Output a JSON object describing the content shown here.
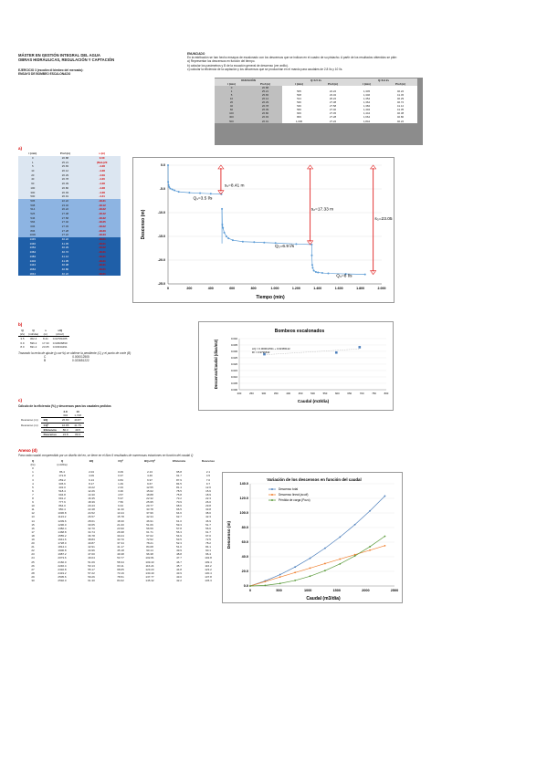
{
  "header": {
    "line1": "MÁSTER EN GESTIÓN INTEGRAL DEL AGUA",
    "line2": "OBRAS HIDRÁULICAS, REGULACIÓN Y CAPTACIÓN",
    "line3": "EJERCICIO 3 (escalón di bimbeo del mercado):",
    "line4": "ENSAYO DE BOMBEO ESCALONADO"
  },
  "statement": {
    "title": "ENUNCIADO",
    "l1": "En la estribación se han hecho ensayos de escalonado con los descensos que se indican en el cuadro de su pistacho. A partir de los resultados obtenidos se pide:",
    "l2": "a) Representar los descensos en función del tiempo.",
    "l3": "b) calcular los parámetros y  B de la ecuación general de descenso (ver anillo).",
    "l4": "c) calcular la eficiencia de la captación y los descensos que se producirían en el mando para caudales de 2.8 l/s y 10 l/s."
  },
  "data_table": {
    "head1": [
      "DURACIÓN",
      "Q=3.5 l/s",
      "Q=6.9 l/s"
    ],
    "head2": [
      "t (min)",
      "Prof (m)",
      "t (min)",
      "Prof (m)",
      "t (min)",
      "Prof (m)"
    ],
    "rows": [
      [
        "0",
        "20.88",
        "",
        "",
        "",
        ""
      ],
      [
        "1",
        "25.21",
        "505",
        "22.22",
        "1,345",
        "40.22"
      ],
      [
        "5",
        "25.65",
        "508",
        "23.32",
        "1,346",
        "41.45"
      ],
      [
        "10",
        "26.12",
        "514",
        "26.22",
        "1,354",
        "40.29"
      ],
      [
        "20",
        "26.29",
        "526",
        "27.38",
        "1,364",
        "40.72"
      ],
      [
        "40",
        "26.78",
        "546",
        "27.58",
        "1,384",
        "41.12"
      ],
      [
        "60",
        "26.39",
        "566",
        "27.40",
        "1,404",
        "41.35"
      ],
      [
        "100",
        "26.80",
        "606",
        "27.45",
        "1,444",
        "40.38"
      ],
      [
        "300",
        "26.93",
        "806",
        "27.28",
        "1,664",
        "40.80"
      ],
      [
        "500",
        "26.91",
        "1,006",
        "27.22",
        "1,844",
        "40.22"
      ]
    ]
  },
  "section_a": {
    "label": "a)",
    "cols": [
      "t (min)",
      "Prof (m)",
      "s (m)"
    ],
    "rows": [
      [
        "0",
        "20.88",
        "0.00"
      ],
      [
        "1",
        "25.21",
        "(Reb.)20"
      ],
      [
        "5",
        "25.65",
        "-4.28"
      ],
      [
        "10",
        "26.12",
        "-4.28"
      ],
      [
        "20",
        "26.29",
        "-4.09"
      ],
      [
        "40",
        "26.78",
        "-4.20"
      ],
      [
        "60",
        "26.39",
        "-4.28"
      ],
      [
        "100",
        "26.80",
        "-4.28"
      ],
      [
        "300",
        "26.93",
        "-4.28"
      ],
      [
        "500",
        "26.91",
        "-4.41"
      ],
      [
        "505",
        "22.22",
        "-18.31"
      ],
      [
        "508",
        "23.32",
        "-18.12"
      ],
      [
        "514",
        "26.22",
        "-18.22"
      ],
      [
        "526",
        "27.38",
        "-18.42"
      ],
      [
        "546",
        "27.58",
        "-18.32"
      ],
      [
        "566",
        "27.40",
        "-18.25"
      ],
      [
        "606",
        "27.45",
        "-18.22"
      ],
      [
        "806",
        "27.28",
        "-18.20"
      ],
      [
        "1006",
        "27.22",
        "-18.33"
      ],
      [
        "1345",
        "40.22",
        "-18.21"
      ],
      [
        "1346",
        "41.45",
        "-18.21"
      ],
      [
        "1354",
        "40.29",
        "-18.22"
      ],
      [
        "1364",
        "40.72",
        "-18.31"
      ],
      [
        "1384",
        "41.12",
        "-18.21"
      ],
      [
        "1404",
        "41.35",
        "-18.21"
      ],
      [
        "1444",
        "40.38",
        "-18.31"
      ],
      [
        "1664",
        "40.80",
        "-18.21"
      ],
      [
        "1844",
        "40.22",
        "-18.21"
      ]
    ]
  },
  "chart_a": {
    "type": "line",
    "ylabel": "Descenso (m)",
    "xlabel": "Tiempo (min)",
    "xticks": [
      "0",
      "200",
      "400",
      "600",
      "800",
      "1.000",
      "1.200",
      "1.400",
      "1.600",
      "1.800",
      "2.000"
    ],
    "yticks": [
      "0.0",
      "-5.0",
      "-10.0",
      "-15.0",
      "-20.0",
      "-25.0"
    ],
    "xlim": [
      0,
      2000
    ],
    "ylim": [
      -25,
      0
    ],
    "annotations": [
      "Q₁=3.5 l/s",
      "Q₂=6.9 l/s",
      "Q₃=8 l/s",
      "s₁=8.41 m",
      "s₂=17.33 m",
      "s₃=23.05 m"
    ],
    "series": [
      {
        "x": [
          0,
          1,
          5,
          10,
          20,
          40,
          60,
          100,
          200,
          300,
          400,
          500
        ],
        "y": [
          0,
          -3.5,
          -4.2,
          -4.6,
          -4.9,
          -5.1,
          -5.3,
          -5.6,
          -5.8,
          -5.9,
          -6.0,
          -6.1
        ]
      },
      {
        "x": [
          505,
          508,
          514,
          526,
          546,
          566,
          606,
          700,
          806,
          900,
          1006,
          1200,
          1345
        ],
        "y": [
          -9.2,
          -12.5,
          -13.2,
          -14.2,
          -15.0,
          -15.4,
          -15.8,
          -16.1,
          -16.2,
          -16.3,
          -16.4,
          -16.6,
          -16.7
        ]
      },
      {
        "x": [
          1346,
          1350,
          1354,
          1364,
          1384,
          1404,
          1444,
          1500,
          1664,
          1844
        ],
        "y": [
          -19.0,
          -21.0,
          -21.6,
          -22.2,
          -22.5,
          -22.6,
          -22.7,
          -22.8,
          -22.9,
          -23.0
        ]
      }
    ]
  },
  "section_b": {
    "label": "b)",
    "cols": [
      "Q",
      "Q",
      "s",
      "s/Q"
    ],
    "units": [
      "(l/s)",
      "(m3/día)",
      "(m)",
      "(d/m2)"
    ],
    "rows": [
      [
        "3.5",
        "302.4",
        "8.41",
        "0.02781085"
      ],
      [
        "6.9",
        "596.2",
        "17.33",
        "0.02906890"
      ],
      [
        "8.0",
        "691.2",
        "23.05",
        "0.03334491"
      ]
    ],
    "note": "Trazando la recta de ajuste (y=ax+b) se obtiene la pendiente (C) y el punto de corte (B)",
    "c_label": "C",
    "c_value": "0.000012505",
    "b_label": "B",
    "b_value": "0.023651222"
  },
  "chart_b": {
    "type": "scatter",
    "title": "Bombeos escalonados",
    "ylabel": "Descenso/Caudal (días/m2)",
    "xlabel": "Caudal (m3/día)",
    "xticks": [
      "200",
      "250",
      "300",
      "350",
      "400",
      "450",
      "500",
      "550",
      "600",
      "650",
      "700",
      "750",
      "800"
    ],
    "yticks": [
      "0.000",
      "0.005",
      "0.010",
      "0.015",
      "0.020",
      "0.025",
      "0.030",
      "0.035",
      "0.040"
    ],
    "xlim": [
      200,
      800
    ],
    "ylim": [
      0,
      0.04
    ],
    "legend": [
      "s/Q = 0.00001250x + 0.02365122",
      "R² = 0.9796543"
    ],
    "series": [
      {
        "x": [
          302.4,
          596.2,
          691.2
        ],
        "y": [
          0.0278,
          0.0291,
          0.0333
        ]
      }
    ]
  },
  "section_c": {
    "label": "c)",
    "title": "Cálculo de la eficiencia (%) y descensos para los caudales pedidos",
    "col_heads": [
      "",
      "",
      "2.8",
      "10"
    ],
    "col_heads2": [
      "",
      "",
      "302",
      "1,728"
    ],
    "rows": [
      [
        "",
        "BQ",
        "26.80",
        "40.87"
      ],
      [
        "",
        "CQ²",
        "16.85",
        "41.75"
      ],
      [
        "",
        "Eficiencia",
        "80.3",
        "49.5"
      ],
      [
        "",
        "Descenso",
        "24.8",
        "80.3"
      ]
    ],
    "side": [
      "Descenso (m)",
      "Descenso (m)"
    ]
  },
  "section_d": {
    "label": "Anexo (d)",
    "intro": "Para cada caudal comprendido por un diseño del en, se tiene en el libro 9 resultados de numerosas estaciones en función del caudal Q",
    "cols": [
      "Q",
      "Q",
      "BQ",
      "CQ²",
      "BQ+CQ²",
      "Eficiencia",
      "Descenso"
    ],
    "units": [
      "(l/s)",
      "(m3/día)",
      "",
      "",
      "",
      "",
      ""
    ],
    "rows": [
      [
        "0",
        "",
        "",
        "",
        "",
        "",
        ""
      ],
      [
        "1",
        "86.4",
        "2.04",
        "0.09",
        "2.13",
        "95.8",
        "2.1"
      ],
      [
        "2",
        "172.8",
        "4.09",
        "0.37",
        "4.46",
        "91.7",
        "4.5"
      ],
      [
        "3",
        "259.2",
        "6.13",
        "0.84",
        "6.97",
        "87.9",
        "7.0"
      ],
      [
        "4",
        "345.6",
        "8.17",
        "1.49",
        "9.67",
        "84.5",
        "9.7"
      ],
      [
        "5",
        "432.0",
        "10.22",
        "2.33",
        "12.55",
        "81.4",
        "12.6"
      ],
      [
        "6",
        "518.4",
        "12.26",
        "3.36",
        "15.62",
        "78.5",
        "15.6"
      ],
      [
        "7",
        "604.8",
        "14.30",
        "4.57",
        "18.88",
        "75.8",
        "18.9"
      ],
      [
        "8",
        "691.2",
        "16.35",
        "5.97",
        "22.32",
        "73.2",
        "22.3"
      ],
      [
        "9",
        "777.6",
        "18.39",
        "7.56",
        "25.95",
        "70.9",
        "26.0"
      ],
      [
        "10",
        "864.0",
        "20.43",
        "9.34",
        "29.77",
        "68.6",
        "29.8"
      ],
      [
        "11",
        "950.4",
        "22.48",
        "11.30",
        "33.78",
        "66.5",
        "33.8"
      ],
      [
        "12",
        "1036.8",
        "24.52",
        "13.44",
        "37.96",
        "64.6",
        "38.0"
      ],
      [
        "13",
        "1123.2",
        "26.57",
        "15.78",
        "42.34",
        "62.7",
        "42.3"
      ],
      [
        "14",
        "1209.6",
        "28.61",
        "18.30",
        "46.91",
        "61.0",
        "46.9"
      ],
      [
        "15",
        "1296.0",
        "30.65",
        "21.00",
        "51.66",
        "59.3",
        "51.7"
      ],
      [
        "16",
        "1382.4",
        "32.70",
        "23.90",
        "56.59",
        "57.8",
        "56.6"
      ],
      [
        "17",
        "1468.8",
        "34.74",
        "26.98",
        "61.71",
        "56.3",
        "61.7"
      ],
      [
        "18",
        "1555.2",
        "36.78",
        "30.24",
        "67.02",
        "54.9",
        "67.0"
      ],
      [
        "19",
        "1641.6",
        "38.83",
        "33.70",
        "72.52",
        "53.5",
        "72.5"
      ],
      [
        "20",
        "1728.0",
        "40.87",
        "37.34",
        "78.21",
        "52.3",
        "78.2"
      ],
      [
        "21",
        "1814.4",
        "42.91",
        "41.17",
        "84.08",
        "51.0",
        "84.1"
      ],
      [
        "22",
        "1900.8",
        "44.96",
        "45.18",
        "90.14",
        "49.9",
        "90.1"
      ],
      [
        "23",
        "1987.2",
        "47.00",
        "49.38",
        "96.38",
        "48.8",
        "96.4"
      ],
      [
        "24",
        "2073.6",
        "49.04",
        "53.77",
        "102.81",
        "47.7",
        "102.8"
      ],
      [
        "25",
        "2160.0",
        "51.09",
        "58.34",
        "109.43",
        "46.7",
        "109.4"
      ],
      [
        "26",
        "2246.4",
        "53.13",
        "63.11",
        "116.24",
        "45.7",
        "116.2"
      ],
      [
        "27",
        "2332.8",
        "55.17",
        "68.05",
        "123.23",
        "44.8",
        "123.2"
      ],
      [
        "28",
        "2419.2",
        "57.22",
        "73.19",
        "130.40",
        "43.9",
        "130.4"
      ],
      [
        "29",
        "2505.6",
        "59.26",
        "78.51",
        "137.77",
        "43.0",
        "137.8"
      ],
      [
        "30",
        "2592.0",
        "61.30",
        "84.02",
        "145.32",
        "42.2",
        "145.3"
      ]
    ]
  },
  "chart_d": {
    "type": "line",
    "title": "Variación de los descensos en función del caudal",
    "ylabel": "Descenso (m)",
    "xlabel": "Caudal (m3/día)",
    "xticks": [
      "0",
      "500",
      "1000",
      "1500",
      "2000",
      "2500"
    ],
    "yticks": [
      "0.0",
      "20.0",
      "40.0",
      "60.0",
      "80.0",
      "100.0",
      "120.0",
      "140.0"
    ],
    "xlim": [
      0,
      2500
    ],
    "ylim": [
      0,
      140
    ],
    "series": [
      {
        "name": "Descenso total",
        "color": "#4f81bd",
        "x": [
          0,
          259,
          518,
          778,
          1037,
          1296,
          1555,
          1814,
          2074,
          2333
        ],
        "y": [
          0,
          7.0,
          15.6,
          26.0,
          38.0,
          51.7,
          67.0,
          84.1,
          102.8,
          123.2
        ]
      },
      {
        "name": "Descenso lineal (acuíf)",
        "color": "#f08030",
        "x": [
          0,
          259,
          518,
          778,
          1037,
          1296,
          1555,
          1814,
          2074,
          2333
        ],
        "y": [
          0,
          6.1,
          12.3,
          18.4,
          24.5,
          30.7,
          36.8,
          42.9,
          49.0,
          55.2
        ]
      },
      {
        "name": "Pérdida de carga (Pozo)",
        "color": "#5a9a3a",
        "x": [
          0,
          259,
          518,
          778,
          1037,
          1296,
          1555,
          1814,
          2074,
          2333
        ],
        "y": [
          0,
          0.8,
          3.4,
          7.6,
          13.4,
          21.0,
          30.2,
          41.2,
          53.8,
          68.1
        ]
      }
    ]
  }
}
